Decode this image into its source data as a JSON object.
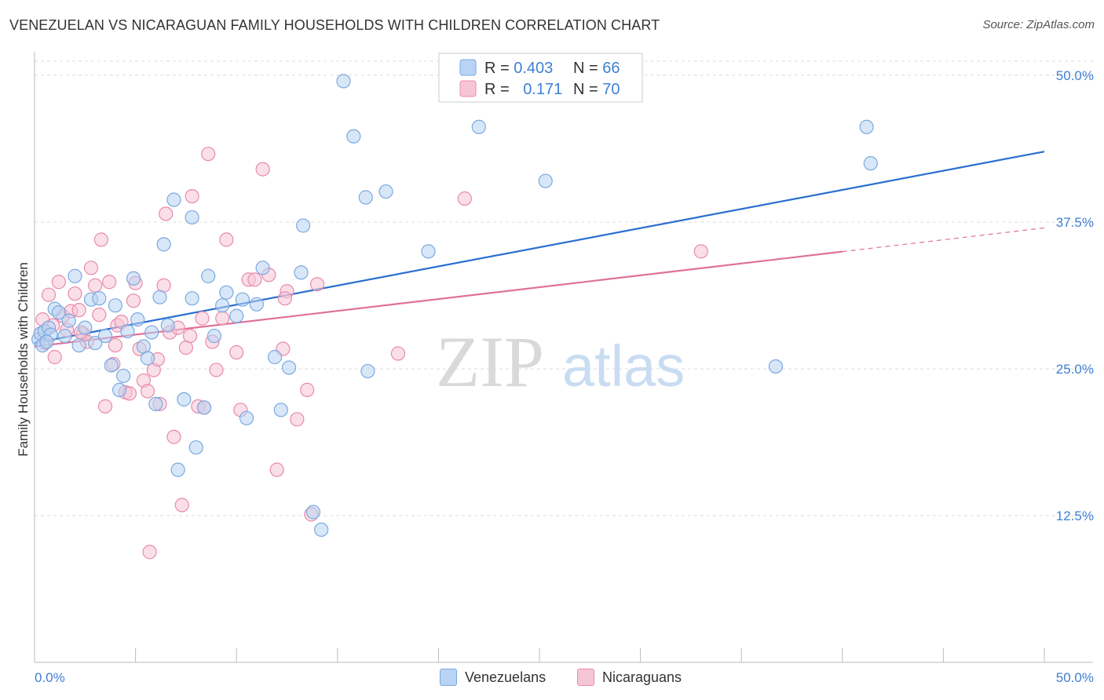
{
  "title": "VENEZUELAN VS NICARAGUAN FAMILY HOUSEHOLDS WITH CHILDREN CORRELATION CHART",
  "source": "Source: ZipAtlas.com",
  "watermark": {
    "zip": "ZIP",
    "atlas": "atlas"
  },
  "colors": {
    "blue_fill": "#b8d3f3",
    "blue_stroke": "#7aa9e0",
    "blue_line": "#2a6fcf",
    "pink_fill": "#f6c5d5",
    "pink_stroke": "#e98aaa",
    "pink_line": "#e0709a",
    "grid": "#dddddd",
    "axis_text": "#3f7fd4"
  },
  "legend": {
    "rows": [
      {
        "r_label": "R = ",
        "r_value": "0.403",
        "n_label": "N = ",
        "n_value": "66"
      },
      {
        "r_label": "R = ",
        "r_value": "0.171",
        "n_label": "N = ",
        "n_value": "70"
      }
    ]
  },
  "bottom_legend": {
    "venezuelans": "Venezuelans",
    "nicaraguans": "Nicaraguans"
  },
  "chart_data": {
    "type": "scatter",
    "title": "VENEZUELAN VS NICARAGUAN FAMILY HOUSEHOLDS WITH CHILDREN CORRELATION CHART",
    "xlabel": "",
    "ylabel": "Family Households with Children",
    "xlim": [
      0,
      50
    ],
    "ylim": [
      0,
      52
    ],
    "x_tick_labels": {
      "min": "0.0%",
      "max": "50.0%"
    },
    "y_ticks": [
      {
        "value": 12.5,
        "label": "12.5%"
      },
      {
        "value": 25.0,
        "label": "25.0%"
      },
      {
        "value": 37.5,
        "label": "37.5%"
      },
      {
        "value": 50.0,
        "label": "50.0%"
      }
    ],
    "series": [
      {
        "name": "Venezuelans",
        "r": 0.403,
        "n": 66,
        "trend": {
          "x0": 0,
          "y0": 27.2,
          "x1": 50,
          "y1": 43.5,
          "solid_to": 50
        },
        "points": [
          [
            0.2,
            27.5
          ],
          [
            0.3,
            28.0
          ],
          [
            0.4,
            27.0
          ],
          [
            0.5,
            28.2
          ],
          [
            0.7,
            28.5
          ],
          [
            0.8,
            27.9
          ],
          [
            1.0,
            30.1
          ],
          [
            1.2,
            29.8
          ],
          [
            1.5,
            27.8
          ],
          [
            1.7,
            29.1
          ],
          [
            2.0,
            32.9
          ],
          [
            2.2,
            27.0
          ],
          [
            2.5,
            28.5
          ],
          [
            2.8,
            30.9
          ],
          [
            3.0,
            27.2
          ],
          [
            3.2,
            31.0
          ],
          [
            3.5,
            27.8
          ],
          [
            3.8,
            25.3
          ],
          [
            4.0,
            30.4
          ],
          [
            4.2,
            23.2
          ],
          [
            4.4,
            24.4
          ],
          [
            4.6,
            28.2
          ],
          [
            4.9,
            32.7
          ],
          [
            5.1,
            29.2
          ],
          [
            5.4,
            26.9
          ],
          [
            5.6,
            25.9
          ],
          [
            5.8,
            28.1
          ],
          [
            6.0,
            22.0
          ],
          [
            6.2,
            31.1
          ],
          [
            6.4,
            35.6
          ],
          [
            6.6,
            28.7
          ],
          [
            6.9,
            39.4
          ],
          [
            7.1,
            16.4
          ],
          [
            7.4,
            22.4
          ],
          [
            7.8,
            31.0
          ],
          [
            7.8,
            37.9
          ],
          [
            8.0,
            18.3
          ],
          [
            8.4,
            21.7
          ],
          [
            8.6,
            32.9
          ],
          [
            8.9,
            27.8
          ],
          [
            9.3,
            30.4
          ],
          [
            9.5,
            31.5
          ],
          [
            10.0,
            29.5
          ],
          [
            10.3,
            30.9
          ],
          [
            10.5,
            20.8
          ],
          [
            11.0,
            30.5
          ],
          [
            11.3,
            33.6
          ],
          [
            11.9,
            26.0
          ],
          [
            12.2,
            21.5
          ],
          [
            12.6,
            25.1
          ],
          [
            13.2,
            33.2
          ],
          [
            13.3,
            37.2
          ],
          [
            13.8,
            12.8
          ],
          [
            14.2,
            11.3
          ],
          [
            15.3,
            49.5
          ],
          [
            15.8,
            44.8
          ],
          [
            16.4,
            39.6
          ],
          [
            16.5,
            24.8
          ],
          [
            17.4,
            40.1
          ],
          [
            19.5,
            35.0
          ],
          [
            22.0,
            45.6
          ],
          [
            25.3,
            41.0
          ],
          [
            36.7,
            25.2
          ],
          [
            41.2,
            45.6
          ],
          [
            41.4,
            42.5
          ],
          [
            0.6,
            27.3
          ]
        ]
      },
      {
        "name": "Nicaraguans",
        "r": 0.171,
        "n": 70,
        "trend": {
          "x0": 0,
          "y0": 26.9,
          "x1": 50,
          "y1": 37.0,
          "solid_to": 40
        },
        "points": [
          [
            0.3,
            28.0
          ],
          [
            0.5,
            27.2
          ],
          [
            0.7,
            31.3
          ],
          [
            0.9,
            28.7
          ],
          [
            1.0,
            26.0
          ],
          [
            1.2,
            32.4
          ],
          [
            1.4,
            29.5
          ],
          [
            1.6,
            28.3
          ],
          [
            1.8,
            29.9
          ],
          [
            2.0,
            31.4
          ],
          [
            2.2,
            30.0
          ],
          [
            2.4,
            28.0
          ],
          [
            2.6,
            27.3
          ],
          [
            2.8,
            33.6
          ],
          [
            3.0,
            32.1
          ],
          [
            3.2,
            29.6
          ],
          [
            3.3,
            36.0
          ],
          [
            3.5,
            21.8
          ],
          [
            3.7,
            32.4
          ],
          [
            3.9,
            25.4
          ],
          [
            4.1,
            28.7
          ],
          [
            4.3,
            29.0
          ],
          [
            4.5,
            23.0
          ],
          [
            4.7,
            22.9
          ],
          [
            4.9,
            30.8
          ],
          [
            5.0,
            32.3
          ],
          [
            5.2,
            26.7
          ],
          [
            5.4,
            24.0
          ],
          [
            5.6,
            23.1
          ],
          [
            5.7,
            9.4
          ],
          [
            5.9,
            24.9
          ],
          [
            6.1,
            25.8
          ],
          [
            6.2,
            22.0
          ],
          [
            6.4,
            32.1
          ],
          [
            6.5,
            38.2
          ],
          [
            6.7,
            28.1
          ],
          [
            6.9,
            19.2
          ],
          [
            7.1,
            28.5
          ],
          [
            7.3,
            13.4
          ],
          [
            7.5,
            26.8
          ],
          [
            7.7,
            27.8
          ],
          [
            7.8,
            39.7
          ],
          [
            8.1,
            21.8
          ],
          [
            8.3,
            29.3
          ],
          [
            8.6,
            43.3
          ],
          [
            8.8,
            27.3
          ],
          [
            9.0,
            24.9
          ],
          [
            9.3,
            29.3
          ],
          [
            9.5,
            36.0
          ],
          [
            10.0,
            26.4
          ],
          [
            10.2,
            21.5
          ],
          [
            10.6,
            32.6
          ],
          [
            10.9,
            32.6
          ],
          [
            11.3,
            42.0
          ],
          [
            11.6,
            33.0
          ],
          [
            12.0,
            16.4
          ],
          [
            12.3,
            26.7
          ],
          [
            12.5,
            31.6
          ],
          [
            13.0,
            20.7
          ],
          [
            13.5,
            23.2
          ],
          [
            13.7,
            12.6
          ],
          [
            14.0,
            32.2
          ],
          [
            18.0,
            26.3
          ],
          [
            21.3,
            39.5
          ],
          [
            33.0,
            35.0
          ],
          [
            4.0,
            27.0
          ],
          [
            2.3,
            28.1
          ],
          [
            0.4,
            29.2
          ],
          [
            8.4,
            21.7
          ],
          [
            12.4,
            31.0
          ]
        ]
      }
    ]
  }
}
